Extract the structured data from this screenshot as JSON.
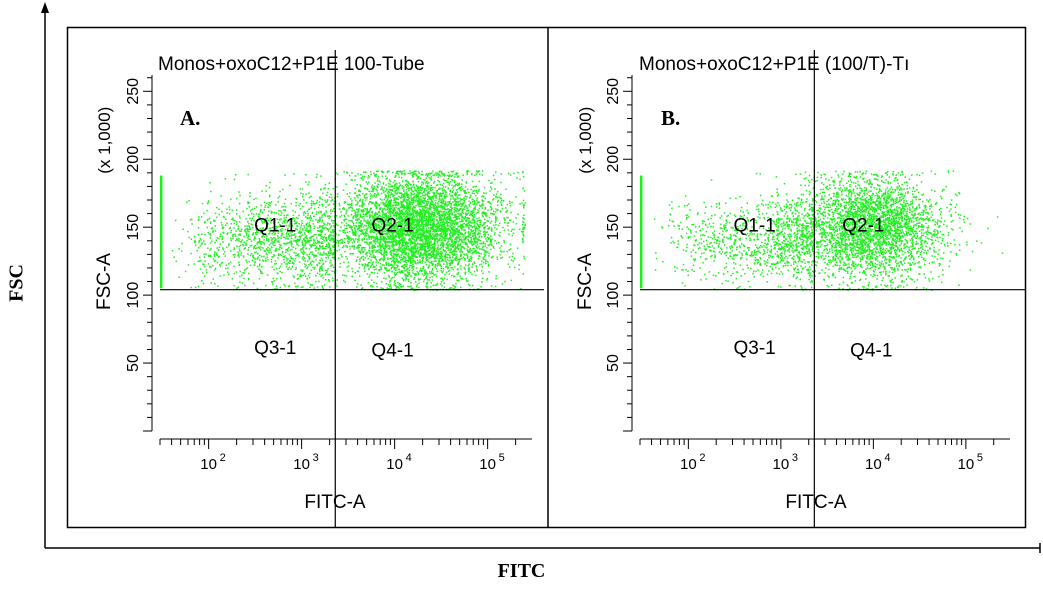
{
  "figure": {
    "x_title": "FITC",
    "y_title": "FSC"
  },
  "colors": {
    "events": "#22ee22",
    "axis": "#000000",
    "background": "#ffffff"
  },
  "chart_data": [
    {
      "type": "scatter",
      "panel_label": "A.",
      "title": "Monos+oxoC12+P1E 100-Tube",
      "xlabel": "FITC-A",
      "ylabel": "FSC-A",
      "y_multiplier_label": "(x 1,000)",
      "x_scale": "log",
      "xlim": [
        30,
        300000
      ],
      "ylim": [
        0,
        262
      ],
      "x_ticks": [
        100,
        1000,
        10000,
        100000
      ],
      "x_tick_labels": [
        "10",
        "10",
        "10",
        "10"
      ],
      "x_tick_exponents": [
        "2",
        "3",
        "4",
        "5"
      ],
      "y_ticks": [
        50,
        100,
        150,
        200,
        250
      ],
      "y_tick_labels": [
        "50",
        "100",
        "150",
        "200",
        "250"
      ],
      "gate": {
        "x": 2300,
        "y": 104
      },
      "quadrants": [
        {
          "label": "Q1-1",
          "x": 520,
          "y": 152
        },
        {
          "label": "Q2-1",
          "x": 9500,
          "y": 152
        },
        {
          "label": "Q3-1",
          "x": 520,
          "y": 62
        },
        {
          "label": "Q4-1",
          "x": 9500,
          "y": 60
        }
      ],
      "population": {
        "approx_events": 6500,
        "left_wing": {
          "fraction": 0.2,
          "x_log_min": 1.6,
          "x_log_max": 3.36,
          "y_mean": 140,
          "y_sd": 17
        },
        "main": {
          "fraction": 0.8,
          "x_log_mean": 4.25,
          "x_log_sd": 0.45,
          "y_mean": 150,
          "y_sd": 20
        },
        "y_range": [
          104,
          192
        ]
      }
    },
    {
      "type": "scatter",
      "panel_label": "B.",
      "title": "Monos+oxoC12+P1E (100/T)-Tı",
      "xlabel": "FITC-A",
      "ylabel": "FSC-A",
      "y_multiplier_label": "(x 1,000)",
      "x_scale": "log",
      "xlim": [
        30,
        300000
      ],
      "ylim": [
        0,
        262
      ],
      "x_ticks": [
        100,
        1000,
        10000,
        100000
      ],
      "x_tick_labels": [
        "10",
        "10",
        "10",
        "10"
      ],
      "x_tick_exponents": [
        "2",
        "3",
        "4",
        "5"
      ],
      "y_ticks": [
        50,
        100,
        150,
        200,
        250
      ],
      "y_tick_labels": [
        "50",
        "100",
        "150",
        "200",
        "250"
      ],
      "gate": {
        "x": 2300,
        "y": 104
      },
      "quadrants": [
        {
          "label": "Q1-1",
          "x": 520,
          "y": 152
        },
        {
          "label": "Q2-1",
          "x": 7800,
          "y": 152
        },
        {
          "label": "Q3-1",
          "x": 520,
          "y": 62
        },
        {
          "label": "Q4-1",
          "x": 9500,
          "y": 60
        }
      ],
      "population": {
        "approx_events": 4200,
        "left_wing": {
          "fraction": 0.22,
          "x_log_min": 1.6,
          "x_log_max": 3.36,
          "y_mean": 140,
          "y_sd": 15
        },
        "main": {
          "fraction": 0.78,
          "x_log_mean": 3.95,
          "x_log_sd": 0.4,
          "y_mean": 150,
          "y_sd": 18
        },
        "y_range": [
          104,
          192
        ]
      }
    }
  ]
}
